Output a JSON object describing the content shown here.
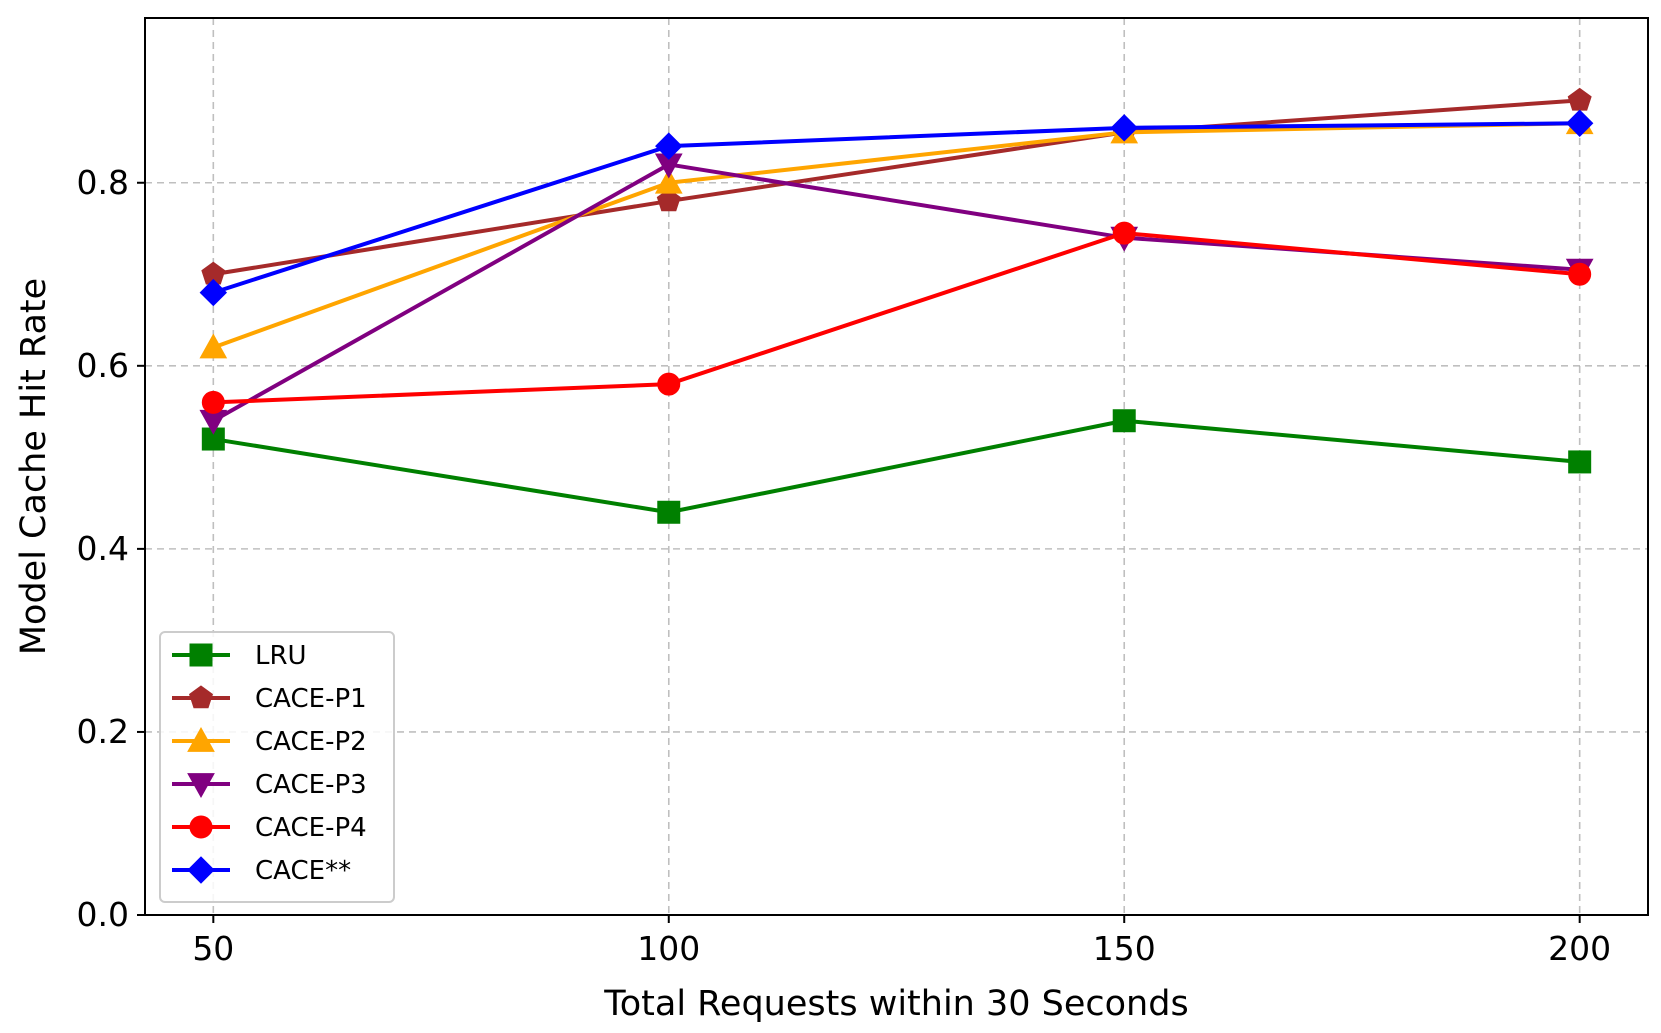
{
  "chart_data": {
    "type": "line",
    "title": "",
    "xlabel": "Total Requests within 30 Seconds",
    "ylabel": "Model Cache Hit Rate",
    "x": [
      50,
      100,
      150,
      200
    ],
    "xticks": [
      "50",
      "100",
      "150",
      "200"
    ],
    "yticks": [
      "0.0",
      "0.2",
      "0.4",
      "0.6",
      "0.8"
    ],
    "xlim": [
      42.5,
      207.5
    ],
    "ylim": [
      0.0,
      0.98
    ],
    "grid": true,
    "legend_position": "lower-left",
    "series": [
      {
        "name": "LRU",
        "color": "#008000",
        "marker": "square",
        "values": [
          0.52,
          0.44,
          0.54,
          0.495
        ]
      },
      {
        "name": "CACE-P1",
        "color": "#a52a2a",
        "marker": "pentagon",
        "values": [
          0.7,
          0.78,
          0.855,
          0.89
        ]
      },
      {
        "name": "CACE-P2",
        "color": "#ffa500",
        "marker": "triangle-up",
        "values": [
          0.62,
          0.8,
          0.855,
          0.865
        ]
      },
      {
        "name": "CACE-P3",
        "color": "#800080",
        "marker": "triangle-down",
        "values": [
          0.54,
          0.82,
          0.74,
          0.705
        ]
      },
      {
        "name": "CACE-P4",
        "color": "#ff0000",
        "marker": "circle",
        "values": [
          0.56,
          0.58,
          0.745,
          0.7
        ]
      },
      {
        "name": "CACE**",
        "color": "#0000ff",
        "marker": "diamond",
        "values": [
          0.68,
          0.84,
          0.86,
          0.865
        ]
      }
    ]
  }
}
